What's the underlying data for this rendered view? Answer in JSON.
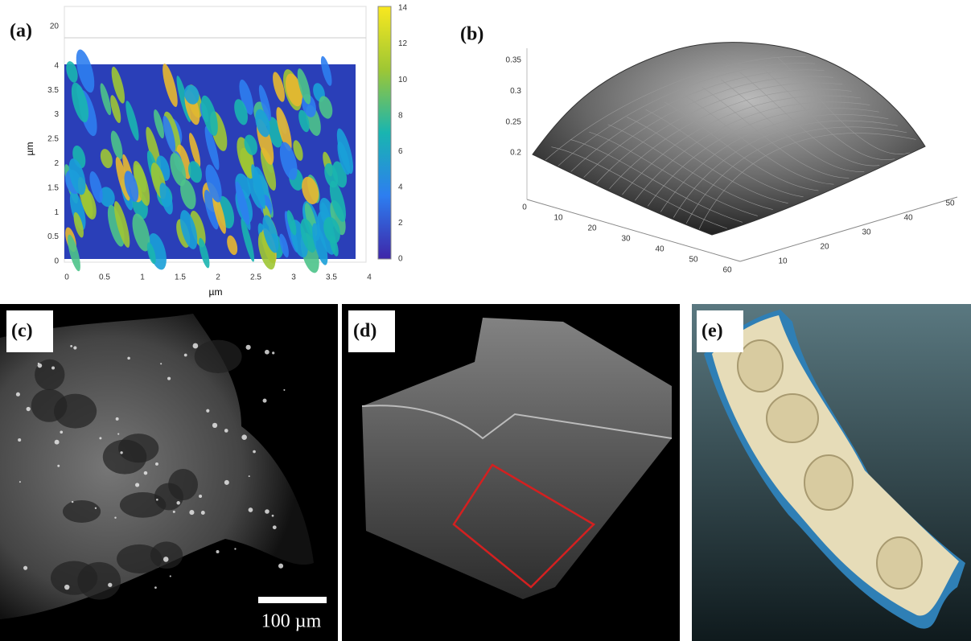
{
  "panels": [
    {
      "label": "(a)",
      "z_ticks": [
        "20"
      ],
      "y_axis_label": "µm",
      "x_axis_label": "µm",
      "y_ticks": [
        "0",
        "0.5",
        "1",
        "1.5",
        "2",
        "2.5",
        "3",
        "3.5",
        "4"
      ],
      "x_ticks": [
        "0",
        "0.5",
        "1",
        "1.5",
        "2",
        "2.5",
        "3",
        "3.5",
        "4"
      ],
      "colorbar_ticks": [
        "0",
        "2",
        "4",
        "6",
        "8",
        "10",
        "12",
        "14"
      ]
    },
    {
      "label": "(b)",
      "z_ticks": [
        "0.2",
        "0.25",
        "0.3",
        "0.35"
      ],
      "x_ticks": [
        "0",
        "10",
        "20",
        "30",
        "40",
        "50",
        "60"
      ],
      "y_ticks": [
        "10",
        "20",
        "30",
        "40",
        "50"
      ]
    },
    {
      "label": "(c)",
      "scale_bar": "100 µm"
    },
    {
      "label": "(d)"
    },
    {
      "label": "(e)"
    }
  ]
}
